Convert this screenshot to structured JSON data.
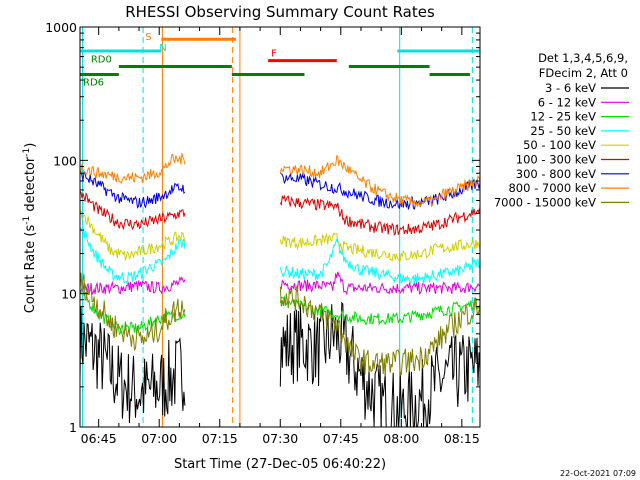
{
  "chart_data": {
    "type": "line",
    "title": "RHESSI Observing Summary Count Rates",
    "xlabel": "Start Time (27-Dec-05 06:40:22)",
    "ylabel_main": "Count Rate (s",
    "ylabel_sup1": "-1",
    "ylabel_mid": " detector",
    "ylabel_sup2": "-1",
    "ylabel_end": ")",
    "yscale": "log",
    "ylim": [
      1,
      1000
    ],
    "xlim_minutes": [
      40.37,
      139.5
    ],
    "x_ticks": [
      {
        "label": "06:45",
        "minute": 45
      },
      {
        "label": "07:00",
        "minute": 60
      },
      {
        "label": "07:15",
        "minute": 75
      },
      {
        "label": "07:30",
        "minute": 90
      },
      {
        "label": "07:45",
        "minute": 105
      },
      {
        "label": "08:00",
        "minute": 120
      },
      {
        "label": "08:15",
        "minute": 135
      }
    ],
    "y_ticks": [
      {
        "label": "1",
        "value": 1
      },
      {
        "label": "10",
        "value": 10
      },
      {
        "label": "100",
        "value": 100
      },
      {
        "label": "1000",
        "value": 1000
      }
    ],
    "legend_header": [
      "Det 1,3,4,5,6,9,",
      "FDecim 2, Att 0"
    ],
    "legend_position": "right",
    "timestamp": "22-Oct-2021 07:09",
    "segments_minutes": [
      [
        40.37,
        66.5
      ],
      [
        90,
        139.5
      ]
    ],
    "series": [
      {
        "name": "3 - 6 keV",
        "color": "#000000",
        "seg1": [
          [
            41,
            4.5
          ],
          [
            45,
            3.5
          ],
          [
            50,
            2.2
          ],
          [
            55,
            1.8
          ],
          [
            60,
            2.0
          ],
          [
            65,
            2.6
          ]
        ],
        "seg2": [
          [
            90,
            4.0
          ],
          [
            95,
            4.3
          ],
          [
            100,
            3.8
          ],
          [
            103,
            5.0
          ],
          [
            105,
            4.5
          ],
          [
            110,
            2.4
          ],
          [
            115,
            1.5
          ],
          [
            120,
            1.3
          ],
          [
            125,
            1.6
          ],
          [
            130,
            2.3
          ],
          [
            135,
            2.6
          ],
          [
            139,
            2.8
          ]
        ]
      },
      {
        "name": "6 - 12 keV",
        "color": "#e000e0",
        "seg1": [
          [
            41,
            11
          ],
          [
            45,
            11
          ],
          [
            50,
            11
          ],
          [
            55,
            11.5
          ],
          [
            60,
            11
          ],
          [
            65,
            12
          ]
        ],
        "seg2": [
          [
            90,
            12
          ],
          [
            95,
            11.5
          ],
          [
            100,
            11.5
          ],
          [
            103,
            11
          ],
          [
            104,
            14
          ],
          [
            106,
            11
          ],
          [
            110,
            11
          ],
          [
            115,
            11
          ],
          [
            120,
            11
          ],
          [
            125,
            11
          ],
          [
            130,
            11
          ],
          [
            135,
            11
          ],
          [
            139,
            11.5
          ]
        ]
      },
      {
        "name": "12 - 25 keV",
        "color": "#00e000",
        "seg1": [
          [
            41,
            10
          ],
          [
            45,
            7
          ],
          [
            50,
            5.5
          ],
          [
            55,
            5.5
          ],
          [
            60,
            6.5
          ],
          [
            65,
            7
          ]
        ],
        "seg2": [
          [
            90,
            9
          ],
          [
            95,
            8
          ],
          [
            100,
            7.5
          ],
          [
            104,
            7
          ],
          [
            110,
            6.5
          ],
          [
            115,
            6.5
          ],
          [
            120,
            6.5
          ],
          [
            125,
            7
          ],
          [
            130,
            7.5
          ],
          [
            135,
            8
          ],
          [
            139,
            8.5
          ]
        ]
      },
      {
        "name": "25 - 50 keV",
        "color": "#00ffff",
        "seg1": [
          [
            41,
            30
          ],
          [
            44,
            20
          ],
          [
            48,
            14
          ],
          [
            52,
            13
          ],
          [
            55,
            14
          ],
          [
            58,
            16
          ],
          [
            61,
            17
          ],
          [
            63,
            20
          ],
          [
            65,
            24
          ]
        ],
        "seg2": [
          [
            90,
            15
          ],
          [
            95,
            14
          ],
          [
            100,
            14
          ],
          [
            102,
            17
          ],
          [
            104,
            24
          ],
          [
            106,
            18
          ],
          [
            110,
            15
          ],
          [
            115,
            14
          ],
          [
            120,
            13
          ],
          [
            125,
            13
          ],
          [
            130,
            14
          ],
          [
            135,
            15
          ],
          [
            139,
            17
          ]
        ]
      },
      {
        "name": "50 - 100 keV",
        "color": "#d0d000",
        "seg1": [
          [
            41,
            40
          ],
          [
            44,
            30
          ],
          [
            48,
            21
          ],
          [
            52,
            19
          ],
          [
            56,
            21
          ],
          [
            60,
            23
          ],
          [
            63,
            25
          ],
          [
            65,
            27
          ]
        ],
        "seg2": [
          [
            90,
            25
          ],
          [
            95,
            24
          ],
          [
            100,
            25
          ],
          [
            104,
            26
          ],
          [
            106,
            22
          ],
          [
            110,
            21
          ],
          [
            115,
            20
          ],
          [
            120,
            19
          ],
          [
            125,
            20
          ],
          [
            130,
            22
          ],
          [
            135,
            23
          ],
          [
            139,
            24
          ]
        ]
      },
      {
        "name": "100 - 300 keV",
        "color": "#e00000",
        "seg1": [
          [
            41,
            55
          ],
          [
            45,
            42
          ],
          [
            50,
            34
          ],
          [
            55,
            33
          ],
          [
            60,
            36
          ],
          [
            63,
            38
          ],
          [
            65,
            40
          ]
        ],
        "seg2": [
          [
            90,
            50
          ],
          [
            95,
            48
          ],
          [
            100,
            46
          ],
          [
            104,
            45
          ],
          [
            106,
            36
          ],
          [
            110,
            33
          ],
          [
            115,
            31
          ],
          [
            120,
            30
          ],
          [
            125,
            31
          ],
          [
            129,
            33
          ],
          [
            130,
            34
          ],
          [
            135,
            38
          ],
          [
            139,
            42
          ]
        ]
      },
      {
        "name": "300 - 800 keV",
        "color": "#0000e0",
        "seg1": [
          [
            41,
            78
          ],
          [
            45,
            65
          ],
          [
            50,
            52
          ],
          [
            55,
            48
          ],
          [
            58,
            50
          ],
          [
            61,
            55
          ],
          [
            63,
            60
          ],
          [
            65,
            62
          ]
        ],
        "seg2": [
          [
            90,
            75
          ],
          [
            95,
            72
          ],
          [
            100,
            66
          ],
          [
            104,
            62
          ],
          [
            110,
            54
          ],
          [
            115,
            49
          ],
          [
            120,
            47
          ],
          [
            125,
            48
          ],
          [
            130,
            52
          ],
          [
            135,
            60
          ],
          [
            139,
            67
          ]
        ]
      },
      {
        "name": "800 - 7000 keV",
        "color": "#ff8000",
        "seg1": [
          [
            41,
            88
          ],
          [
            45,
            80
          ],
          [
            50,
            75
          ],
          [
            55,
            74
          ],
          [
            58,
            78
          ],
          [
            61,
            85
          ],
          [
            63,
            100
          ],
          [
            65,
            102
          ]
        ],
        "seg2": [
          [
            90,
            88
          ],
          [
            95,
            85
          ],
          [
            100,
            80
          ],
          [
            104,
            100
          ],
          [
            106,
            90
          ],
          [
            110,
            70
          ],
          [
            115,
            57
          ],
          [
            120,
            50
          ],
          [
            125,
            48
          ],
          [
            129,
            50
          ],
          [
            130,
            55
          ],
          [
            135,
            62
          ],
          [
            139,
            70
          ]
        ]
      },
      {
        "name": "7000 - 15000 keV",
        "color": "#808000",
        "seg1": [
          [
            41,
            12
          ],
          [
            44,
            9
          ],
          [
            48,
            6
          ],
          [
            52,
            5
          ],
          [
            56,
            4.5
          ],
          [
            60,
            5.5
          ],
          [
            63,
            7
          ],
          [
            65,
            8
          ]
        ],
        "seg2": [
          [
            90,
            10
          ],
          [
            95,
            9
          ],
          [
            100,
            7
          ],
          [
            104,
            6
          ],
          [
            108,
            3.5
          ],
          [
            112,
            3.0
          ],
          [
            118,
            3.0
          ],
          [
            124,
            3.2
          ],
          [
            128,
            4.0
          ],
          [
            132,
            5.5
          ],
          [
            136,
            7
          ],
          [
            139,
            8
          ]
        ]
      }
    ],
    "markers": [
      {
        "label": "S",
        "color": "#ff8000",
        "start": 60.5,
        "end": 79,
        "value": 810
      },
      {
        "label": "N",
        "color": "#00e0e0",
        "start": 40.37,
        "end": 60.5,
        "value": 660
      },
      {
        "label": "",
        "color": "#00e0e0",
        "start": 119,
        "end": 139.5,
        "value": 660
      },
      {
        "label": "F",
        "color": "#ff0000",
        "start": 87,
        "end": 104,
        "value": 560
      },
      {
        "label": "RD0",
        "color": "#008000",
        "start": 50,
        "end": 78,
        "value": 505
      },
      {
        "label": "",
        "color": "#008000",
        "start": 107,
        "end": 127,
        "value": 505
      },
      {
        "label": "RD6",
        "color": "#008000",
        "start": 40.37,
        "end": 50,
        "value": 440
      },
      {
        "label": "",
        "color": "#008000",
        "start": 78,
        "end": 96,
        "value": 440
      },
      {
        "label": "",
        "color": "#008000",
        "start": 127,
        "end": 137,
        "value": 440
      }
    ],
    "vlines": [
      {
        "minute": 41,
        "color": "#00e0e0",
        "dashed": false
      },
      {
        "minute": 56,
        "color": "#00e0e0",
        "dashed": true
      },
      {
        "minute": 60.8,
        "color": "#ff8000",
        "dashed": false
      },
      {
        "minute": 78.2,
        "color": "#ff8000",
        "dashed": true
      },
      {
        "minute": 80,
        "color": "#ff8000",
        "dashed": false
      },
      {
        "minute": 119.6,
        "color": "#00e0e0",
        "dashed": false
      },
      {
        "minute": 137.6,
        "color": "#00e0e0",
        "dashed": true
      }
    ]
  }
}
